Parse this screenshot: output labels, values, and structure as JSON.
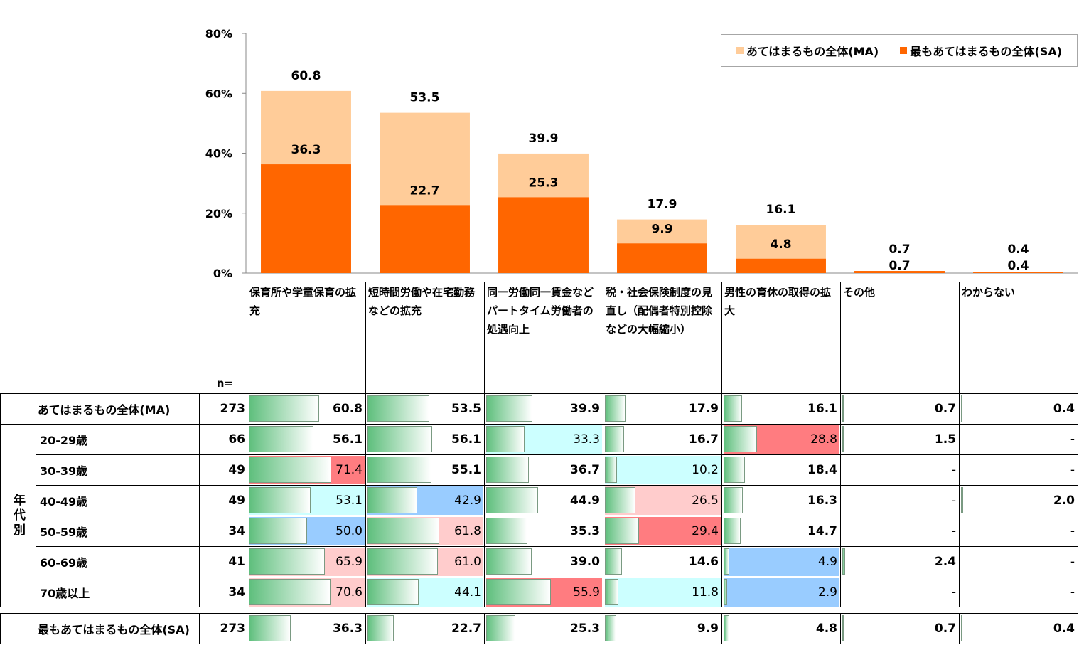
{
  "chart_data": {
    "type": "bar",
    "stacked": "overlay",
    "categories": [
      "保育所や学童保育の拡充",
      "短時間労働や在宅勤務などの拡充",
      "同一労働同一賃金などパートタイム労働者の処遇向上",
      "税・社会保険制度の見直し（配偶者特別控除などの大幅縮小）",
      "男性の育休の取得の拡大",
      "その他",
      "わからない"
    ],
    "series": [
      {
        "name": "あてはまるもの全体(MA)",
        "color": "#ffcc99",
        "values": [
          60.8,
          53.5,
          39.9,
          17.9,
          16.1,
          0.7,
          0.4
        ],
        "labels": [
          "60.8",
          "53.5",
          "39.9",
          "17.9",
          "16.1",
          "0.7",
          "0.4"
        ]
      },
      {
        "name": "最もあてはまるもの全体(SA)",
        "color": "#ff6600",
        "values": [
          36.3,
          22.7,
          25.3,
          9.9,
          4.8,
          0.7,
          0.4
        ],
        "labels": [
          "36.3",
          "22.7",
          "25.3",
          "9.9",
          "4.8",
          "0.7",
          "0.4"
        ]
      }
    ],
    "ylim": [
      0,
      80
    ],
    "yticks": [
      "0%",
      "20%",
      "40%",
      "60%",
      "80%"
    ],
    "legend": "top-right"
  },
  "table": {
    "headers": [
      "保育所や学童保育の拡充",
      "短時間労働や在宅勤務などの拡充",
      "同一労働同一賃金などパートタイム労働者の処遇向上",
      "税・社会保険制度の見直し（配偶者特別控除などの大幅縮小）",
      "男性の育休の取得の拡大",
      "その他",
      "わからない"
    ],
    "n_label": "n=",
    "group_label": "年代別",
    "rows": [
      {
        "label": "あてはまるもの全体(MA)",
        "n": "273",
        "values": [
          60.8,
          53.5,
          39.9,
          17.9,
          16.1,
          0.7,
          0.4
        ],
        "display": [
          "60.8",
          "53.5",
          "39.9",
          "17.9",
          "16.1",
          "0.7",
          "0.4"
        ],
        "bg": [
          "",
          "",
          "",
          "",
          "",
          "",
          ""
        ]
      },
      {
        "label": "20-29歳",
        "n": "66",
        "values": [
          56.1,
          56.1,
          33.3,
          16.7,
          28.8,
          1.5,
          0
        ],
        "display": [
          "56.1",
          "56.1",
          "33.3",
          "16.7",
          "28.8",
          "1.5",
          "-"
        ],
        "bg": [
          "",
          "",
          "#ccffff",
          "",
          "#ff7c80",
          "",
          ""
        ]
      },
      {
        "label": "30-39歳",
        "n": "49",
        "values": [
          71.4,
          55.1,
          36.7,
          10.2,
          18.4,
          0,
          0
        ],
        "display": [
          "71.4",
          "55.1",
          "36.7",
          "10.2",
          "18.4",
          "-",
          "-"
        ],
        "bg": [
          "#ff7c80",
          "",
          "",
          "#ccffff",
          "",
          "",
          ""
        ]
      },
      {
        "label": "40-49歳",
        "n": "49",
        "values": [
          53.1,
          42.9,
          44.9,
          26.5,
          16.3,
          0,
          2.0
        ],
        "display": [
          "53.1",
          "42.9",
          "44.9",
          "26.5",
          "16.3",
          "-",
          "2.0"
        ],
        "bg": [
          "#ccffff",
          "#99ccff",
          "",
          "#ffcccc",
          "",
          "",
          ""
        ]
      },
      {
        "label": "50-59歳",
        "n": "34",
        "values": [
          50.0,
          61.8,
          35.3,
          29.4,
          14.7,
          0,
          0
        ],
        "display": [
          "50.0",
          "61.8",
          "35.3",
          "29.4",
          "14.7",
          "-",
          "-"
        ],
        "bg": [
          "#99ccff",
          "#ffcccc",
          "",
          "#ff7c80",
          "",
          "",
          ""
        ]
      },
      {
        "label": "60-69歳",
        "n": "41",
        "values": [
          65.9,
          61.0,
          39.0,
          14.6,
          4.9,
          2.4,
          0
        ],
        "display": [
          "65.9",
          "61.0",
          "39.0",
          "14.6",
          "4.9",
          "2.4",
          "-"
        ],
        "bg": [
          "#ffcccc",
          "#ffcccc",
          "",
          "",
          "#99ccff",
          "",
          ""
        ]
      },
      {
        "label": "70歳以上",
        "n": "34",
        "values": [
          70.6,
          44.1,
          55.9,
          11.8,
          2.9,
          0,
          0
        ],
        "display": [
          "70.6",
          "44.1",
          "55.9",
          "11.8",
          "2.9",
          "-",
          "-"
        ],
        "bg": [
          "#ffcccc",
          "#ccffff",
          "#ff7c80",
          "#ccffff",
          "#99ccff",
          "",
          ""
        ]
      },
      {
        "label": "最もあてはまるもの全体(SA)",
        "n": "273",
        "values": [
          36.3,
          22.7,
          25.3,
          9.9,
          4.8,
          0.7,
          0.4
        ],
        "display": [
          "36.3",
          "22.7",
          "25.3",
          "9.9",
          "4.8",
          "0.7",
          "0.4"
        ],
        "bg": [
          "",
          "",
          "",
          "",
          "",
          "",
          ""
        ]
      }
    ]
  }
}
